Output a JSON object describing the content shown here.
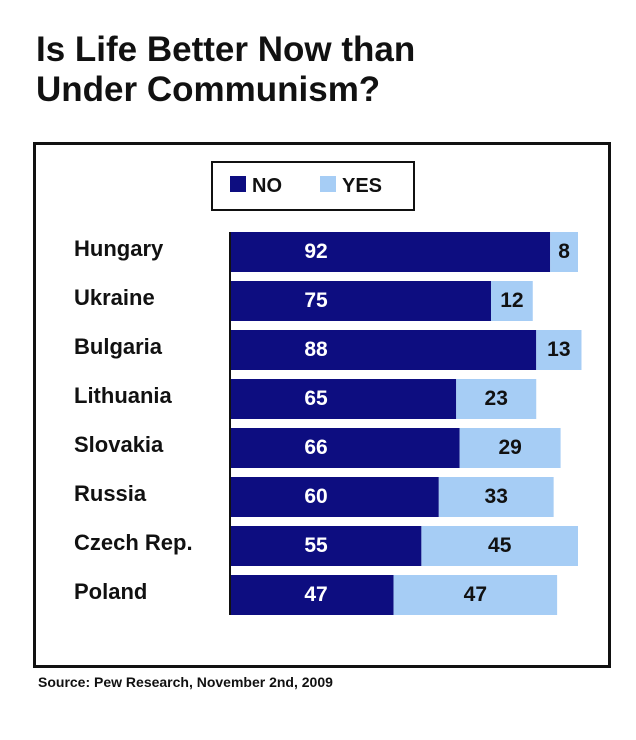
{
  "title_lines": [
    "Is Life Better Now than",
    "Under Communism?"
  ],
  "source": "Source: Pew Research, November 2nd, 2009",
  "chart_data": {
    "type": "bar",
    "orientation": "horizontal",
    "stacked": true,
    "title": "Is Life Better Now than Under Communism?",
    "categories": [
      "Hungary",
      "Ukraine",
      "Bulgaria",
      "Lithuania",
      "Slovakia",
      "Russia",
      "Czech Rep.",
      "Poland"
    ],
    "series": [
      {
        "name": "NO",
        "color": "#0d0d80",
        "values": [
          92,
          75,
          88,
          65,
          66,
          60,
          55,
          47
        ]
      },
      {
        "name": "YES",
        "color": "#a6cdf5",
        "values": [
          8,
          12,
          13,
          23,
          29,
          33,
          45,
          47
        ]
      }
    ],
    "legend_placement": "top",
    "grid": false,
    "xlim": [
      0,
      100
    ]
  }
}
